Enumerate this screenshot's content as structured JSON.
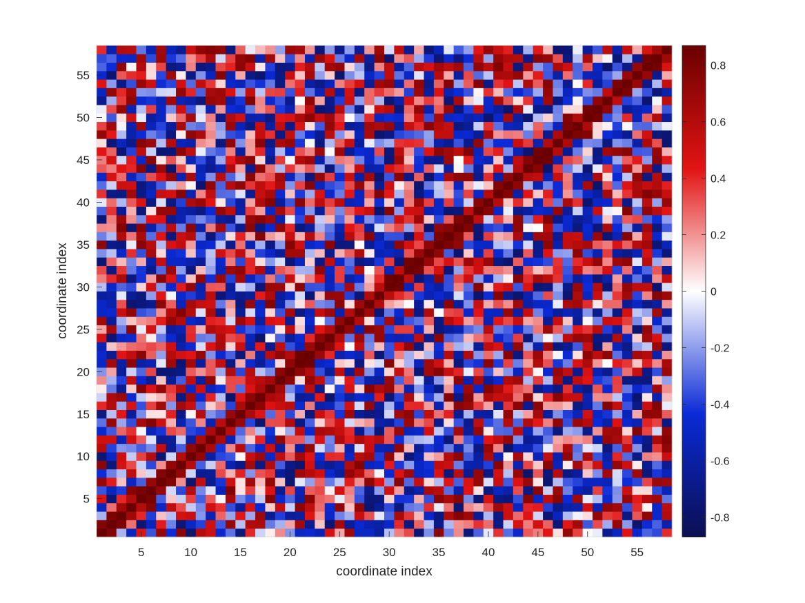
{
  "chart_data": {
    "type": "heatmap",
    "title": "",
    "xlabel": "coordinate index",
    "ylabel": "coordinate index",
    "n": 58,
    "xlim": [
      0.5,
      58.5
    ],
    "ylim": [
      0.5,
      58.5
    ],
    "x_ticks": [
      5,
      10,
      15,
      20,
      25,
      30,
      35,
      40,
      45,
      50,
      55
    ],
    "y_ticks": [
      5,
      10,
      15,
      20,
      25,
      30,
      35,
      40,
      45,
      50,
      55
    ],
    "colorbar": {
      "min": -0.87,
      "max": 0.87,
      "ticks": [
        -0.8,
        -0.6,
        -0.4,
        -0.2,
        0,
        0.2,
        0.4,
        0.6,
        0.8
      ],
      "colormap": [
        "#0b0f52",
        "#0a2ad6",
        "#ffffff",
        "#e11313",
        "#6a0000"
      ]
    },
    "diagonal_value": 0.87,
    "values_note": "symmetric correlation matrix"
  }
}
